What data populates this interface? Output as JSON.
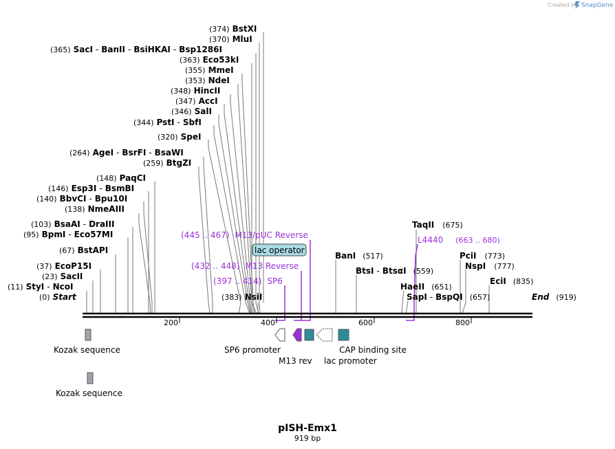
{
  "header": {
    "credit_text": "Created by",
    "brand": "SnapGene",
    "brand_color": "#4a8fc9"
  },
  "plasmid": {
    "name": "pISH-Emx1",
    "length_label": "919 bp",
    "length": 919
  },
  "ruler": {
    "ticks": [
      {
        "value": 200,
        "label": "200"
      },
      {
        "value": 400,
        "label": "400"
      },
      {
        "value": 600,
        "label": "600"
      },
      {
        "value": 800,
        "label": "800"
      }
    ]
  },
  "sites": [
    {
      "pos": "(374)",
      "names": [
        "BstXI"
      ]
    },
    {
      "pos": "(370)",
      "names": [
        "MluI"
      ]
    },
    {
      "pos": "(365)",
      "names": [
        "SacI",
        "BanII",
        "BsiHKAI",
        "Bsp1286I"
      ]
    },
    {
      "pos": "(363)",
      "names": [
        "Eco53kI"
      ]
    },
    {
      "pos": "(355)",
      "names": [
        "MmeI"
      ]
    },
    {
      "pos": "(353)",
      "names": [
        "NdeI"
      ]
    },
    {
      "pos": "(348)",
      "names": [
        "HincII"
      ]
    },
    {
      "pos": "(347)",
      "names": [
        "AccI"
      ]
    },
    {
      "pos": "(346)",
      "names": [
        "SalI"
      ]
    },
    {
      "pos": "(344)",
      "names": [
        "PstI",
        "SbfI"
      ]
    },
    {
      "pos": "(320)",
      "names": [
        "SpeI"
      ]
    },
    {
      "pos": "(264)",
      "names": [
        "AgeI",
        "BsrFI",
        "BsaWI"
      ]
    },
    {
      "pos": "(259)",
      "names": [
        "BtgZI"
      ]
    },
    {
      "pos": "(148)",
      "names": [
        "PaqCI"
      ]
    },
    {
      "pos": "(146)",
      "names": [
        "Esp3I",
        "BsmBI"
      ]
    },
    {
      "pos": "(140)",
      "names": [
        "BbvCI",
        "Bpu10I"
      ]
    },
    {
      "pos": "(138)",
      "names": [
        "NmeAIII"
      ]
    },
    {
      "pos": "(103)",
      "names": [
        "BsaAI",
        "DraIII"
      ]
    },
    {
      "pos": "(95)",
      "names": [
        "BpmI",
        "Eco57MI"
      ]
    },
    {
      "pos": "(67)",
      "names": [
        "BstAPI"
      ]
    },
    {
      "pos": "(37)",
      "names": [
        "EcoP15I"
      ]
    },
    {
      "pos": "(23)",
      "names": [
        "SacII"
      ]
    },
    {
      "pos": "(11)",
      "names": [
        "StyI",
        "NcoI"
      ]
    },
    {
      "pos": "(0)",
      "names": [
        "Start"
      ]
    },
    {
      "pos": "(383)",
      "names": [
        "NsiI"
      ]
    },
    {
      "pos": "(517)",
      "names": [
        "BanI"
      ]
    },
    {
      "pos": "(559)",
      "names": [
        "BtsI",
        "BtsαI"
      ]
    },
    {
      "pos": "(675)",
      "names": [
        "TaqII"
      ]
    },
    {
      "pos": "(651)",
      "names": [
        "HaeII"
      ]
    },
    {
      "pos": "(657)",
      "names": [
        "SapI",
        "BspQI"
      ]
    },
    {
      "pos": "(773)",
      "names": [
        "PciI"
      ]
    },
    {
      "pos": "(777)",
      "names": [
        "NspI"
      ]
    },
    {
      "pos": "(835)",
      "names": [
        "EciI"
      ]
    },
    {
      "pos": "(919)",
      "names": [
        "End"
      ]
    }
  ],
  "primers": [
    {
      "range": "(445 .. 467)",
      "name": "M13/pUC Reverse"
    },
    {
      "range": "(432 .. 448)",
      "name": "M13 Reverse"
    },
    {
      "range": "(397 .. 414)",
      "name": "SP6"
    },
    {
      "range": "(663 .. 680)",
      "name": "L4440"
    }
  ],
  "primer_color": "#9b30d9",
  "features": {
    "lac_operator": "lac operator",
    "sp6_promoter": "SP6 promoter",
    "m13_rev": "M13 rev",
    "lac_promoter": "lac promoter",
    "cap_binding_site": "CAP binding site",
    "kozak_1": "Kozak sequence",
    "kozak_2": "Kozak sequence"
  },
  "colors": {
    "lac_operator_fill": "#a8dbe6",
    "cap_fill": "#2e8b99",
    "kozak_fill": "#a0a4ac",
    "m13_fill": "#9b30d9"
  }
}
